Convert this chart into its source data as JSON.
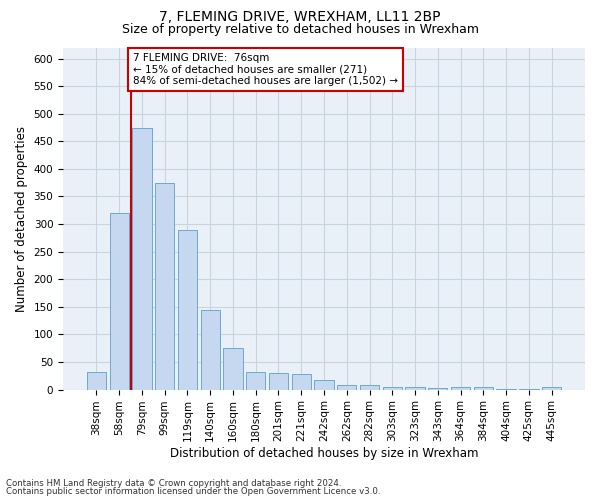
{
  "title1": "7, FLEMING DRIVE, WREXHAM, LL11 2BP",
  "title2": "Size of property relative to detached houses in Wrexham",
  "xlabel": "Distribution of detached houses by size in Wrexham",
  "ylabel": "Number of detached properties",
  "categories": [
    "38sqm",
    "58sqm",
    "79sqm",
    "99sqm",
    "119sqm",
    "140sqm",
    "160sqm",
    "180sqm",
    "201sqm",
    "221sqm",
    "242sqm",
    "262sqm",
    "282sqm",
    "303sqm",
    "323sqm",
    "343sqm",
    "364sqm",
    "384sqm",
    "404sqm",
    "425sqm",
    "445sqm"
  ],
  "values": [
    32,
    320,
    475,
    375,
    290,
    145,
    76,
    32,
    30,
    28,
    17,
    8,
    8,
    5,
    5,
    2,
    5,
    5,
    1,
    1,
    5
  ],
  "bar_color": "#c5d8ef",
  "bar_edge_color": "#6aaad4",
  "vline_x_index": 2,
  "annotation_line1": "7 FLEMING DRIVE:  76sqm",
  "annotation_line2": "← 15% of detached houses are smaller (271)",
  "annotation_line3": "84% of semi-detached houses are larger (1,502) →",
  "annotation_box_color": "#ffffff",
  "annotation_box_edge": "#cc0000",
  "vline_color": "#cc0000",
  "footnote1": "Contains HM Land Registry data © Crown copyright and database right 2024.",
  "footnote2": "Contains public sector information licensed under the Open Government Licence v3.0.",
  "background_color": "#eaf0f8",
  "ylim": [
    0,
    620
  ],
  "yticks": [
    0,
    50,
    100,
    150,
    200,
    250,
    300,
    350,
    400,
    450,
    500,
    550,
    600
  ],
  "title1_fontsize": 10,
  "title2_fontsize": 9,
  "xlabel_fontsize": 8.5,
  "ylabel_fontsize": 8.5,
  "tick_fontsize": 7.5,
  "annot_fontsize": 7.5
}
